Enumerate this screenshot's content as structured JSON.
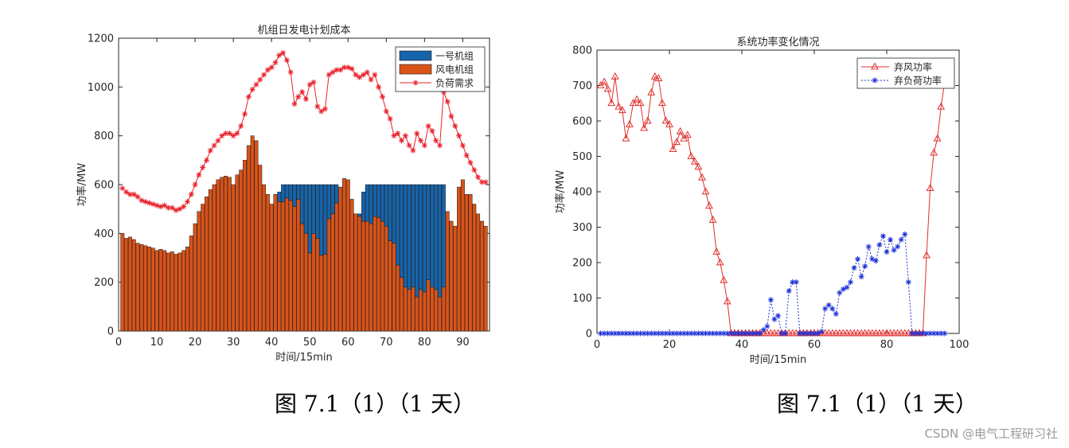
{
  "caption_left": "图 7.1（1）（1 天）",
  "caption_right": "图 7.1（1）（1 天）",
  "watermark": "CSDN @电气工程研习社",
  "chart_data": [
    {
      "type": "bar",
      "title": "机组日发电计划成本",
      "xlabel": "时间/15min",
      "ylabel": "功率/MW",
      "xlim": [
        0,
        97
      ],
      "ylim": [
        0,
        1200
      ],
      "xticks": [
        0,
        10,
        20,
        30,
        40,
        50,
        60,
        70,
        80,
        90
      ],
      "yticks": [
        0,
        200,
        400,
        600,
        800,
        1000,
        1200
      ],
      "legend_position": "top-right",
      "colors": {
        "unit1": "#1764ab",
        "wind": "#d95319",
        "load": "#e8202a"
      },
      "series": [
        {
          "name": "一号机组",
          "values": [
            0,
            0,
            0,
            0,
            0,
            0,
            0,
            0,
            0,
            0,
            0,
            0,
            0,
            0,
            0,
            0,
            0,
            0,
            0,
            0,
            0,
            0,
            0,
            0,
            0,
            0,
            0,
            0,
            0,
            0,
            0,
            0,
            0,
            0,
            0,
            0,
            0,
            0,
            0,
            0,
            0,
            40,
            70,
            55,
            65,
            90,
            60,
            160,
            200,
            280,
            200,
            220,
            290,
            285,
            140,
            120,
            75,
            0,
            0,
            0,
            0,
            0,
            10,
            120,
            150,
            160,
            130,
            135,
            150,
            170,
            230,
            240,
            330,
            380,
            420,
            430,
            420,
            460,
            430,
            440,
            390,
            420,
            430,
            460,
            420,
            0,
            0,
            0,
            0,
            0,
            0,
            0,
            0,
            0,
            0,
            0
          ],
          "stacked_on": "风电机组"
        },
        {
          "name": "风电机组",
          "values": [
            400,
            380,
            385,
            375,
            360,
            355,
            350,
            345,
            340,
            330,
            335,
            330,
            320,
            325,
            315,
            320,
            330,
            345,
            390,
            440,
            490,
            520,
            550,
            580,
            600,
            620,
            630,
            635,
            630,
            600,
            640,
            660,
            700,
            760,
            800,
            780,
            680,
            600,
            560,
            520,
            560,
            530,
            530,
            545,
            535,
            510,
            540,
            440,
            400,
            320,
            400,
            380,
            310,
            315,
            460,
            480,
            525,
            590,
            625,
            620,
            540,
            480,
            470,
            450,
            450,
            440,
            470,
            465,
            450,
            430,
            370,
            360,
            270,
            220,
            180,
            170,
            180,
            140,
            170,
            160,
            210,
            180,
            170,
            140,
            180,
            490,
            450,
            430,
            590,
            620,
            560,
            560,
            520,
            480,
            450,
            430
          ]
        },
        {
          "name": "负荷需求",
          "type": "line",
          "values": [
            585,
            570,
            560,
            560,
            550,
            535,
            530,
            525,
            520,
            515,
            510,
            515,
            505,
            505,
            495,
            500,
            510,
            530,
            560,
            600,
            640,
            670,
            700,
            740,
            760,
            780,
            800,
            810,
            810,
            800,
            810,
            840,
            890,
            960,
            990,
            1010,
            1030,
            1050,
            1070,
            1080,
            1100,
            1130,
            1140,
            1110,
            1060,
            930,
            960,
            980,
            950,
            1010,
            1020,
            920,
            900,
            910,
            1050,
            1060,
            1070,
            1070,
            1080,
            1080,
            1075,
            1050,
            1040,
            1050,
            1060,
            1030,
            1050,
            1000,
            960,
            900,
            870,
            800,
            810,
            780,
            800,
            760,
            740,
            810,
            780,
            760,
            840,
            820,
            780,
            760,
            980,
            940,
            880,
            840,
            800,
            760,
            720,
            690,
            660,
            630,
            610,
            610
          ]
        }
      ]
    },
    {
      "type": "line",
      "title": "系统功率变化情况",
      "xlabel": "时间/15min",
      "ylabel": "功率/MW",
      "xlim": [
        0,
        100
      ],
      "ylim": [
        0,
        800
      ],
      "xticks": [
        0,
        20,
        40,
        60,
        80,
        100
      ],
      "yticks": [
        0,
        100,
        200,
        300,
        400,
        500,
        600,
        700,
        800
      ],
      "legend_position": "top-right",
      "colors": {
        "curtail_wind": "#e0302c",
        "curtail_load": "#1a2fd6"
      },
      "series": [
        {
          "name": "弃风功率",
          "x": [
            0,
            1,
            2,
            3,
            4,
            5,
            6,
            7,
            8,
            9,
            10,
            11,
            12,
            13,
            14,
            15,
            16,
            17,
            18,
            19,
            20,
            21,
            22,
            23,
            24,
            25,
            26,
            27,
            28,
            29,
            30,
            31,
            32,
            33,
            34,
            35,
            36,
            37,
            38,
            39,
            40,
            41,
            42,
            43,
            44,
            45,
            46,
            47,
            48,
            49,
            50,
            51,
            52,
            53,
            54,
            55,
            56,
            57,
            58,
            59,
            60,
            61,
            62,
            63,
            64,
            65,
            66,
            67,
            68,
            69,
            70,
            71,
            72,
            73,
            74,
            75,
            76,
            77,
            78,
            79,
            80,
            81,
            82,
            83,
            84,
            85,
            86,
            87,
            88,
            89,
            90,
            91,
            92,
            93,
            94,
            95
          ],
          "values": [
            700,
            710,
            690,
            650,
            725,
            640,
            630,
            550,
            590,
            650,
            660,
            650,
            580,
            600,
            680,
            725,
            720,
            650,
            600,
            590,
            520,
            540,
            570,
            550,
            560,
            500,
            485,
            470,
            440,
            400,
            360,
            320,
            230,
            200,
            150,
            90,
            0,
            0,
            0,
            0,
            0,
            0,
            0,
            0,
            0,
            0,
            0,
            0,
            0,
            0,
            0,
            0,
            0,
            0,
            0,
            0,
            0,
            0,
            0,
            0,
            0,
            0,
            0,
            0,
            0,
            0,
            0,
            0,
            0,
            0,
            0,
            0,
            0,
            0,
            0,
            0,
            0,
            0,
            0,
            0,
            0,
            0,
            0,
            0,
            0,
            0,
            0,
            0,
            0,
            0,
            220,
            410,
            510,
            550,
            640,
            710
          ]
        },
        {
          "name": "弃负荷功率",
          "x": [
            0,
            1,
            2,
            3,
            4,
            5,
            6,
            7,
            8,
            9,
            10,
            11,
            12,
            13,
            14,
            15,
            16,
            17,
            18,
            19,
            20,
            21,
            22,
            23,
            24,
            25,
            26,
            27,
            28,
            29,
            30,
            31,
            32,
            33,
            34,
            35,
            36,
            37,
            38,
            39,
            40,
            41,
            42,
            43,
            44,
            45,
            46,
            47,
            48,
            49,
            50,
            51,
            52,
            53,
            54,
            55,
            56,
            57,
            58,
            59,
            60,
            61,
            62,
            63,
            64,
            65,
            66,
            67,
            68,
            69,
            70,
            71,
            72,
            73,
            74,
            75,
            76,
            77,
            78,
            79,
            80,
            81,
            82,
            83,
            84,
            85,
            86,
            87,
            88,
            89,
            90,
            91,
            92,
            93,
            94,
            95
          ],
          "values": [
            0,
            0,
            0,
            0,
            0,
            0,
            0,
            0,
            0,
            0,
            0,
            0,
            0,
            0,
            0,
            0,
            0,
            0,
            0,
            0,
            0,
            0,
            0,
            0,
            0,
            0,
            0,
            0,
            0,
            0,
            0,
            0,
            0,
            0,
            0,
            0,
            0,
            0,
            0,
            0,
            0,
            0,
            0,
            0,
            0,
            10,
            20,
            95,
            40,
            50,
            0,
            0,
            120,
            145,
            145,
            0,
            0,
            0,
            0,
            0,
            0,
            5,
            70,
            80,
            70,
            55,
            115,
            125,
            130,
            145,
            185,
            210,
            160,
            190,
            245,
            210,
            205,
            250,
            275,
            230,
            265,
            235,
            245,
            265,
            280,
            145,
            0,
            0,
            0,
            0,
            0,
            0,
            0,
            0,
            0,
            0
          ]
        }
      ]
    }
  ]
}
